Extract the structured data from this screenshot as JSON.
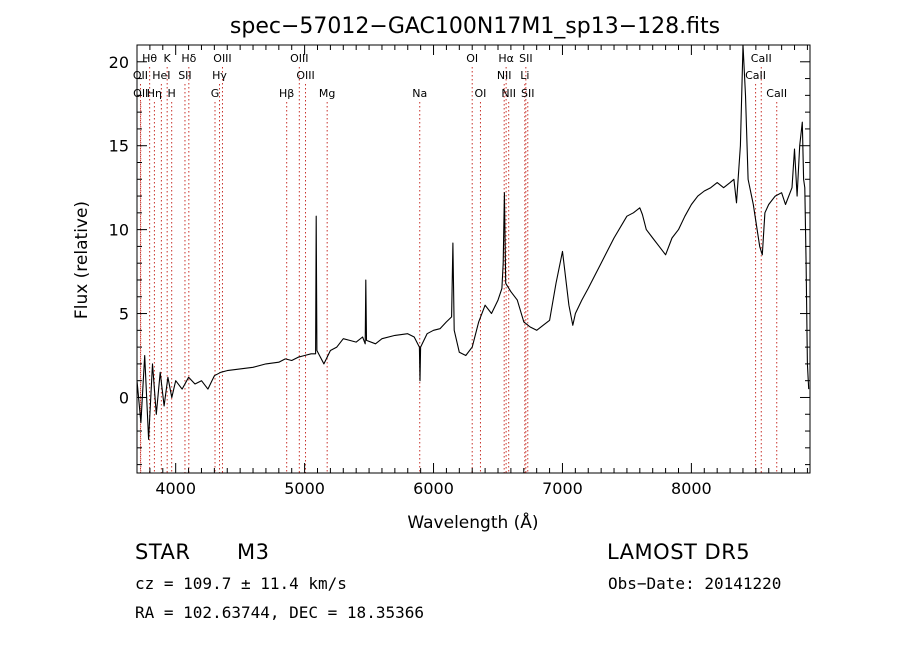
{
  "chart_data": {
    "type": "line",
    "title": "spec−57012−GAC100N17M1_sp13−128.fits",
    "xlabel": "Wavelength (Å)",
    "ylabel": "Flux (relative)",
    "xlim": [
      3700,
      8920
    ],
    "ylim": [
      -4.5,
      21
    ],
    "x_ticks": [
      4000,
      5000,
      6000,
      7000,
      8000
    ],
    "y_ticks": [
      0,
      5,
      10,
      15,
      20
    ],
    "grid": false,
    "spectrum_points": [
      [
        3700,
        1.0
      ],
      [
        3730,
        -1.5
      ],
      [
        3760,
        2.5
      ],
      [
        3790,
        -2.5
      ],
      [
        3820,
        2.0
      ],
      [
        3850,
        -1.0
      ],
      [
        3880,
        1.5
      ],
      [
        3910,
        -0.5
      ],
      [
        3940,
        1.2
      ],
      [
        3970,
        0.0
      ],
      [
        4000,
        1.0
      ],
      [
        4050,
        0.5
      ],
      [
        4100,
        1.2
      ],
      [
        4150,
        0.8
      ],
      [
        4200,
        1.0
      ],
      [
        4250,
        0.5
      ],
      [
        4300,
        1.3
      ],
      [
        4350,
        1.5
      ],
      [
        4400,
        1.6
      ],
      [
        4500,
        1.7
      ],
      [
        4600,
        1.8
      ],
      [
        4700,
        2.0
      ],
      [
        4800,
        2.1
      ],
      [
        4850,
        2.3
      ],
      [
        4900,
        2.2
      ],
      [
        4950,
        2.4
      ],
      [
        5000,
        2.5
      ],
      [
        5050,
        2.6
      ],
      [
        5085,
        2.6
      ],
      [
        5090,
        10.8
      ],
      [
        5095,
        2.8
      ],
      [
        5150,
        2.0
      ],
      [
        5200,
        2.8
      ],
      [
        5250,
        3.0
      ],
      [
        5300,
        3.5
      ],
      [
        5350,
        3.4
      ],
      [
        5400,
        3.3
      ],
      [
        5450,
        3.6
      ],
      [
        5470,
        3.2
      ],
      [
        5475,
        7.0
      ],
      [
        5480,
        3.4
      ],
      [
        5550,
        3.2
      ],
      [
        5600,
        3.5
      ],
      [
        5700,
        3.7
      ],
      [
        5800,
        3.8
      ],
      [
        5850,
        3.6
      ],
      [
        5890,
        3.0
      ],
      [
        5895,
        1.0
      ],
      [
        5900,
        3.0
      ],
      [
        5950,
        3.8
      ],
      [
        6000,
        4.0
      ],
      [
        6050,
        4.1
      ],
      [
        6100,
        4.5
      ],
      [
        6140,
        4.8
      ],
      [
        6150,
        9.2
      ],
      [
        6160,
        4.0
      ],
      [
        6200,
        2.7
      ],
      [
        6250,
        2.5
      ],
      [
        6300,
        3.0
      ],
      [
        6350,
        4.5
      ],
      [
        6400,
        5.5
      ],
      [
        6450,
        5.0
      ],
      [
        6500,
        5.8
      ],
      [
        6530,
        6.5
      ],
      [
        6540,
        8.0
      ],
      [
        6550,
        12.2
      ],
      [
        6560,
        6.8
      ],
      [
        6600,
        6.3
      ],
      [
        6650,
        5.8
      ],
      [
        6700,
        4.5
      ],
      [
        6750,
        4.2
      ],
      [
        6800,
        4.0
      ],
      [
        6850,
        4.3
      ],
      [
        6900,
        4.6
      ],
      [
        6950,
        6.8
      ],
      [
        7000,
        8.7
      ],
      [
        7050,
        5.5
      ],
      [
        7080,
        4.3
      ],
      [
        7100,
        5.0
      ],
      [
        7150,
        5.8
      ],
      [
        7200,
        6.5
      ],
      [
        7300,
        8.0
      ],
      [
        7400,
        9.5
      ],
      [
        7500,
        10.8
      ],
      [
        7550,
        11.0
      ],
      [
        7600,
        11.3
      ],
      [
        7620,
        10.9
      ],
      [
        7650,
        10.0
      ],
      [
        7700,
        9.5
      ],
      [
        7750,
        9.0
      ],
      [
        7800,
        8.5
      ],
      [
        7850,
        9.5
      ],
      [
        7900,
        10.0
      ],
      [
        7950,
        10.8
      ],
      [
        8000,
        11.5
      ],
      [
        8050,
        12.0
      ],
      [
        8100,
        12.3
      ],
      [
        8150,
        12.5
      ],
      [
        8200,
        12.8
      ],
      [
        8250,
        12.5
      ],
      [
        8300,
        12.8
      ],
      [
        8330,
        13.0
      ],
      [
        8350,
        11.6
      ],
      [
        8380,
        15.0
      ],
      [
        8400,
        21.0
      ],
      [
        8420,
        18.0
      ],
      [
        8440,
        13.0
      ],
      [
        8480,
        11.5
      ],
      [
        8530,
        9.0
      ],
      [
        8550,
        8.5
      ],
      [
        8570,
        11.0
      ],
      [
        8600,
        11.5
      ],
      [
        8650,
        12.0
      ],
      [
        8700,
        12.2
      ],
      [
        8730,
        11.5
      ],
      [
        8780,
        12.5
      ],
      [
        8800,
        14.8
      ],
      [
        8820,
        12.0
      ],
      [
        8840,
        15.0
      ],
      [
        8860,
        16.4
      ],
      [
        8870,
        13.0
      ],
      [
        8880,
        12.5
      ],
      [
        8890,
        8.0
      ],
      [
        8900,
        2.0
      ],
      [
        8910,
        0.5
      ]
    ],
    "line_markers": [
      {
        "label": "Hθ",
        "wavelength": 3798,
        "row": 0
      },
      {
        "label": "K",
        "wavelength": 3934,
        "row": 0
      },
      {
        "label": "Hδ",
        "wavelength": 4102,
        "row": 0
      },
      {
        "label": "OIII",
        "wavelength": 4363,
        "row": 0
      },
      {
        "label": "OIII",
        "wavelength": 4959,
        "row": 0
      },
      {
        "label": "OI",
        "wavelength": 6300,
        "row": 0
      },
      {
        "label": "Hα",
        "wavelength": 6563,
        "row": 0
      },
      {
        "label": "SII",
        "wavelength": 6716,
        "row": 0
      },
      {
        "label": "CaII",
        "wavelength": 8542,
        "row": 0
      },
      {
        "label": "OII",
        "wavelength": 3727,
        "row": 1
      },
      {
        "label": "HeI",
        "wavelength": 3889,
        "row": 1
      },
      {
        "label": "SII",
        "wavelength": 4072,
        "row": 1
      },
      {
        "label": "Hγ",
        "wavelength": 4340,
        "row": 1
      },
      {
        "label": "OIII",
        "wavelength": 5007,
        "row": 1
      },
      {
        "label": "NII",
        "wavelength": 6548,
        "row": 1
      },
      {
        "label": "Li",
        "wavelength": 6708,
        "row": 1
      },
      {
        "label": "CaII",
        "wavelength": 8498,
        "row": 1
      },
      {
        "label": "OII",
        "wavelength": 3729,
        "row": 2
      },
      {
        "label": "Hη",
        "wavelength": 3835,
        "row": 2
      },
      {
        "label": "H",
        "wavelength": 3969,
        "row": 2
      },
      {
        "label": "G",
        "wavelength": 4305,
        "row": 2
      },
      {
        "label": "Hβ",
        "wavelength": 4861,
        "row": 2
      },
      {
        "label": "Mg",
        "wavelength": 5175,
        "row": 2
      },
      {
        "label": "Na",
        "wavelength": 5893,
        "row": 2
      },
      {
        "label": "OI",
        "wavelength": 6364,
        "row": 2
      },
      {
        "label": "NII",
        "wavelength": 6583,
        "row": 2
      },
      {
        "label": "SII",
        "wavelength": 6731,
        "row": 2
      },
      {
        "label": "CaII",
        "wavelength": 8662,
        "row": 2
      }
    ]
  },
  "info": {
    "object_class": "STAR",
    "subclass": "M3",
    "survey": "LAMOST DR5",
    "cz": "cz = 109.7 ± 11.4 km/s",
    "obs_date": "Obs−Date: 20141220",
    "coords": "RA = 102.63744, DEC =  18.35366"
  }
}
